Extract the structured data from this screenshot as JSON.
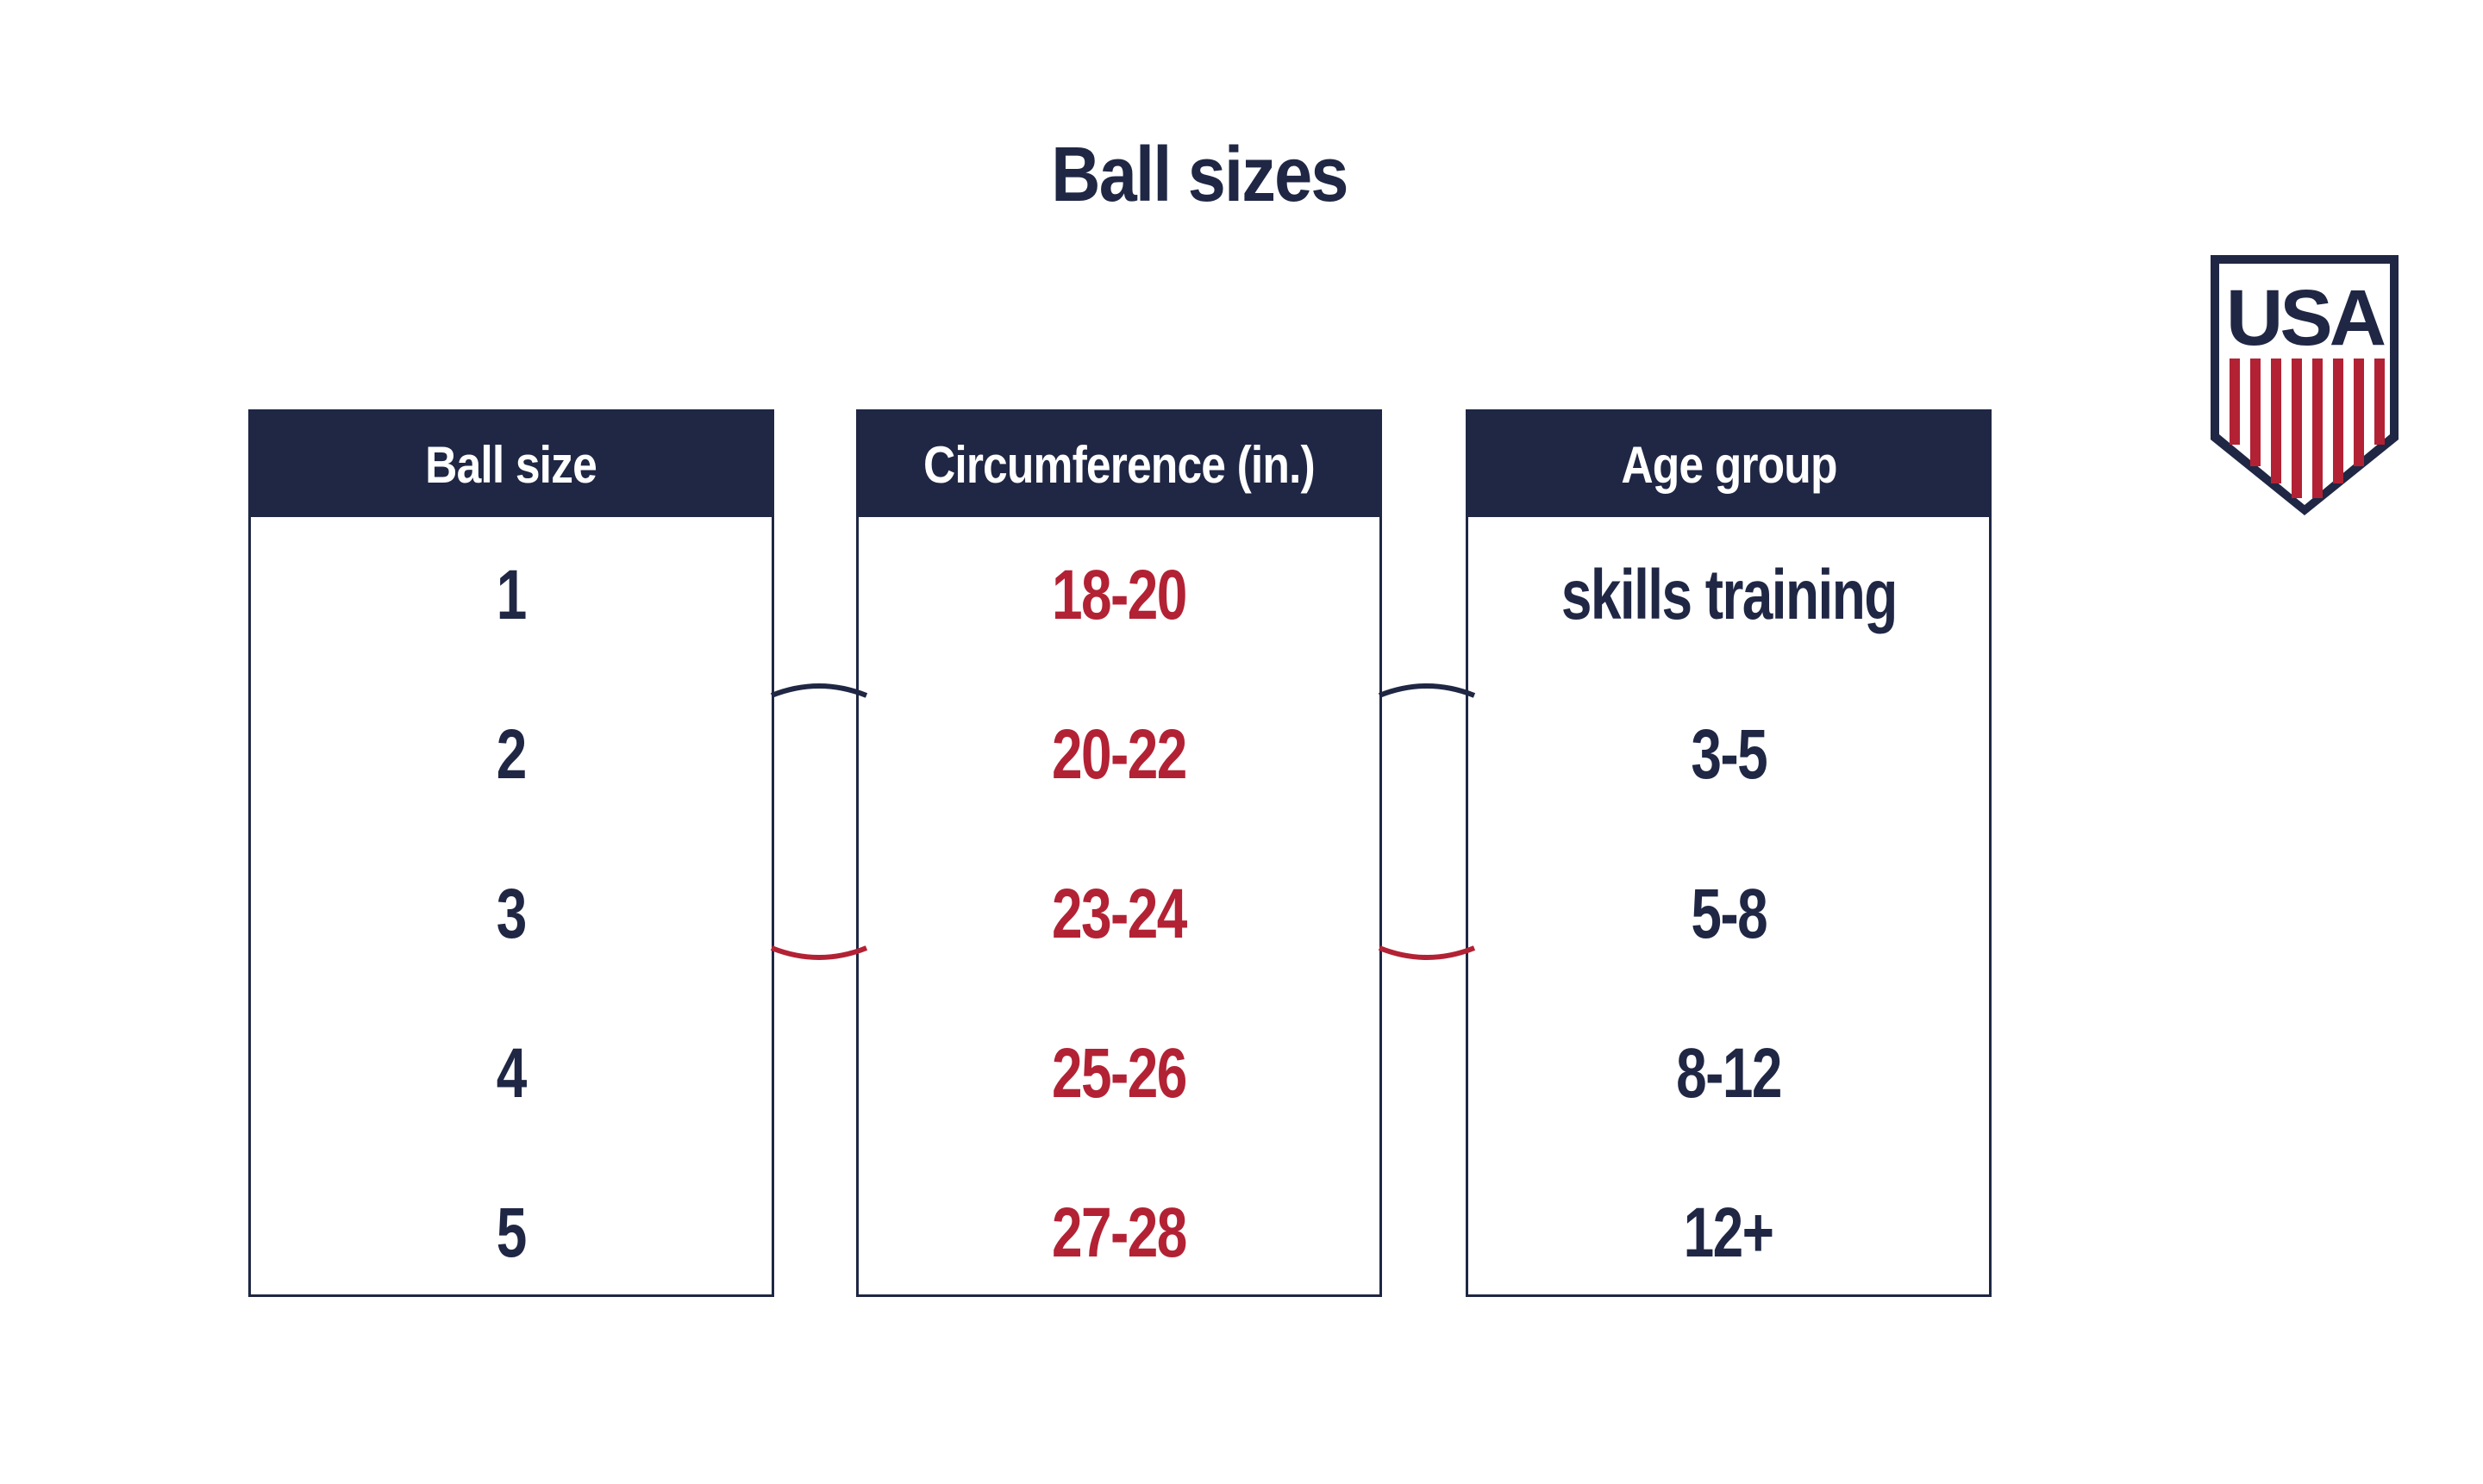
{
  "title": "Ball sizes",
  "columns": [
    {
      "header": "Ball size",
      "color": "#1f2744",
      "values": [
        "1",
        "2",
        "3",
        "4",
        "5"
      ]
    },
    {
      "header": "Circumference (in.)",
      "color": "#b22234",
      "values": [
        "18-20",
        "20-22",
        "23-24",
        "25-26",
        "27-28"
      ]
    },
    {
      "header": "Age group",
      "color": "#1f2744",
      "values": [
        "skills training",
        "3-5",
        "5-8",
        "8-12",
        "12+"
      ]
    }
  ],
  "logo": {
    "icon": "us-soccer-crest-icon",
    "text": "USA"
  },
  "colors": {
    "navy": "#1f2744",
    "red": "#b22234"
  }
}
